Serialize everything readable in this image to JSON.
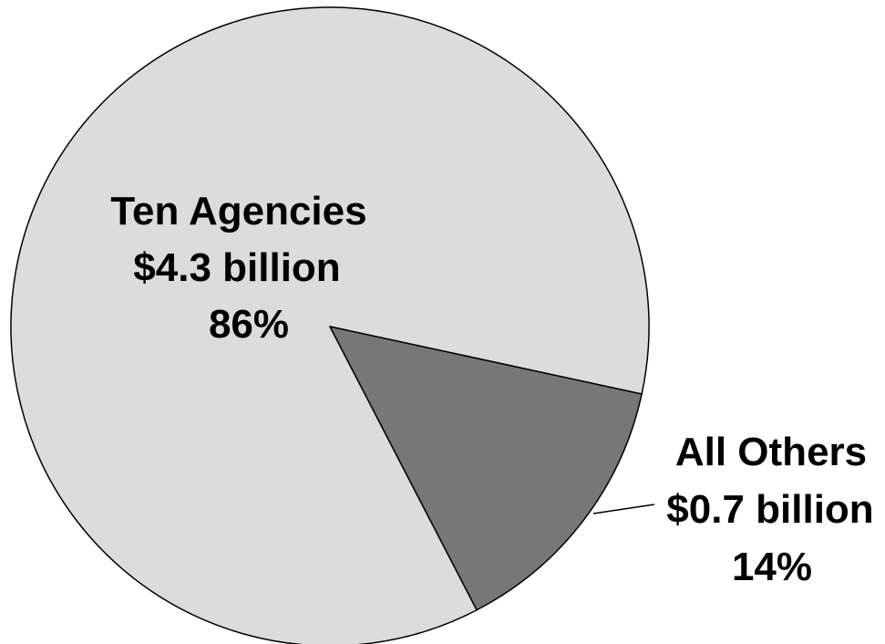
{
  "chart_data": {
    "type": "pie",
    "slices": [
      {
        "label": "Ten Agencies",
        "amount": "$4.3 billion",
        "percent_label": "86%",
        "value": 86,
        "color": "#dcdcdc"
      },
      {
        "label": "All Others",
        "amount": "$0.7 billion",
        "percent_label": "14%",
        "value": 14,
        "color": "#777777"
      }
    ]
  }
}
